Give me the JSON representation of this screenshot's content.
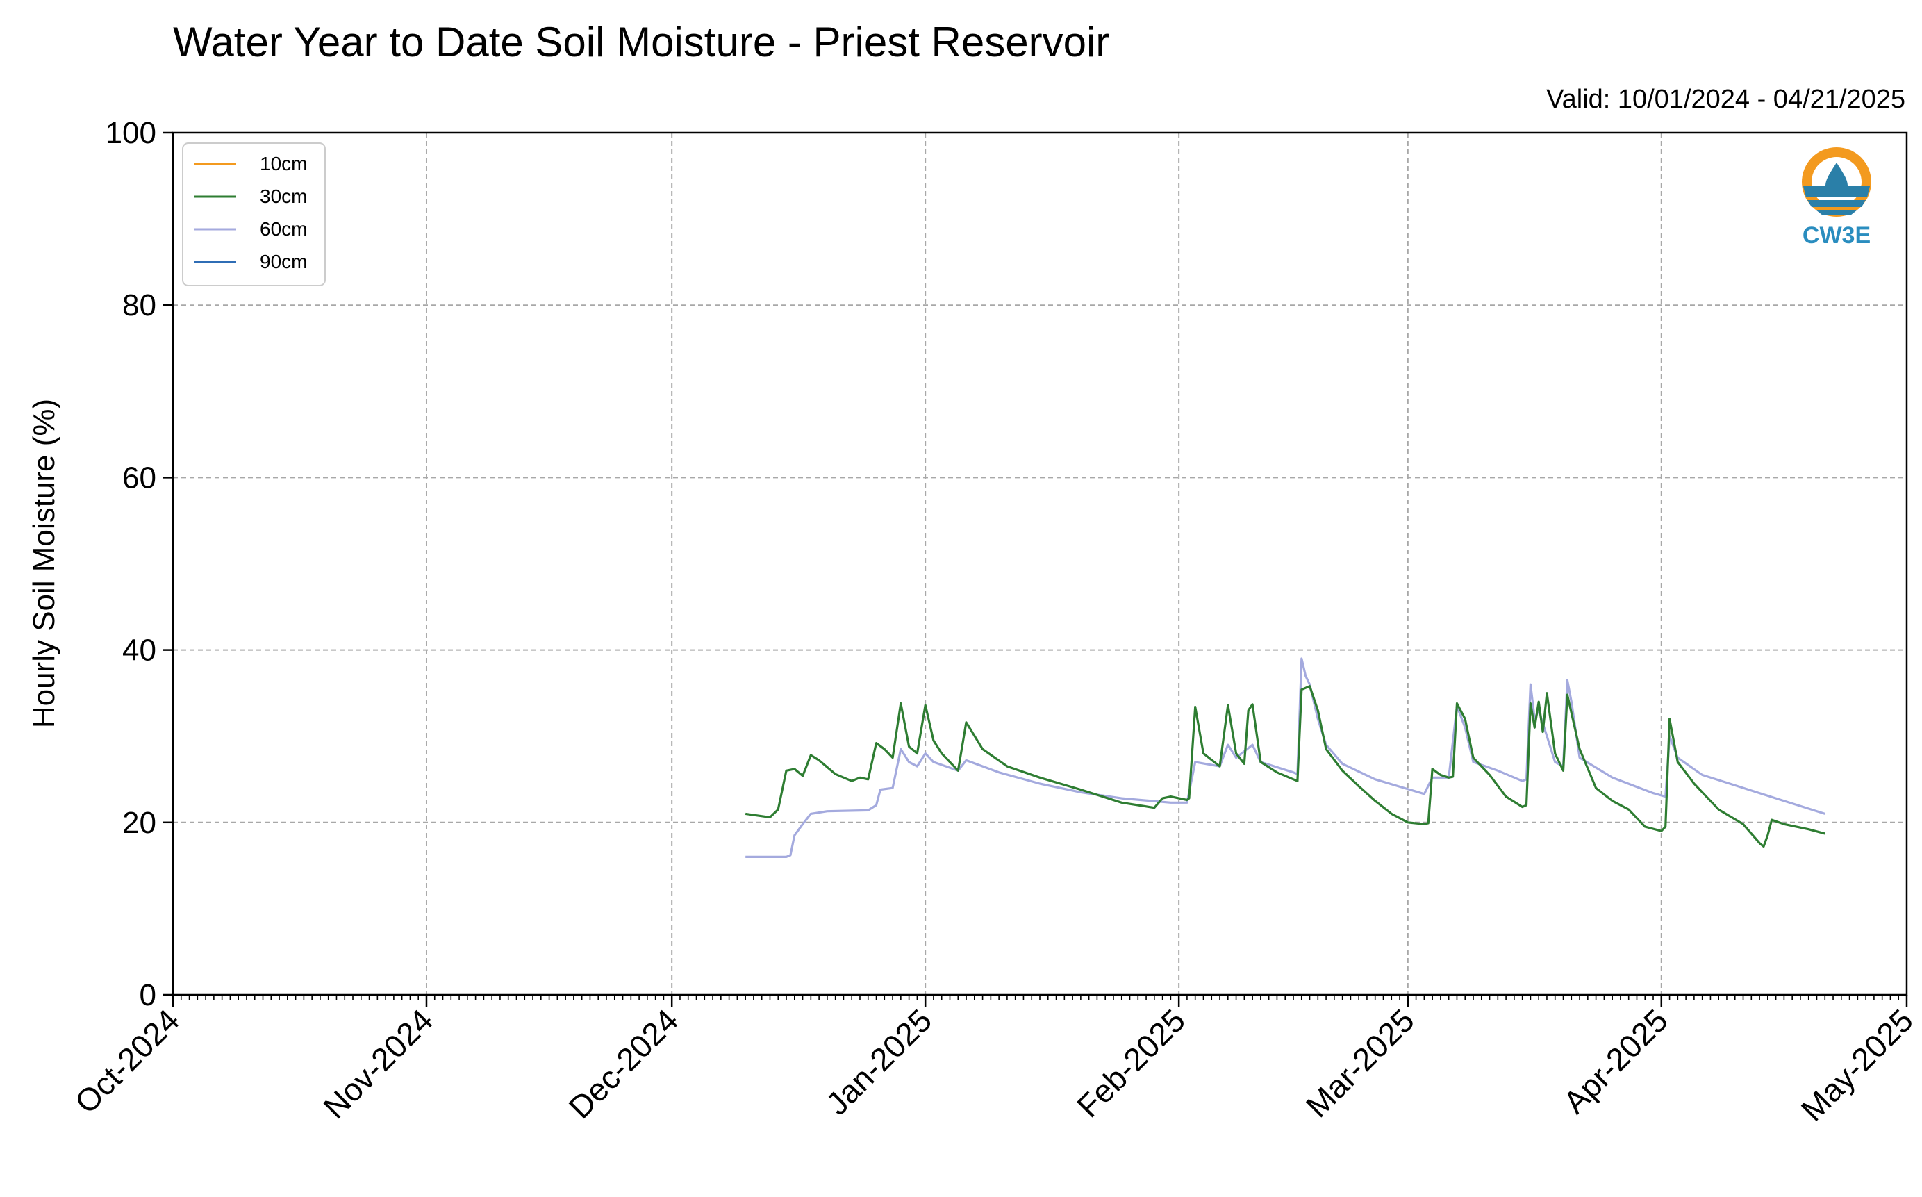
{
  "title": "Water Year to Date Soil Moisture - Priest Reservoir",
  "valid_text": "Valid: 10/01/2024 - 04/21/2025",
  "logo": {
    "text": "CW3E",
    "icon": "cw3e-logo-icon",
    "colors": {
      "ring": "#f39a1f",
      "waves": "#2a7fa8",
      "text": "#2a8dbf"
    }
  },
  "chart_data": {
    "type": "line",
    "title": "Water Year to Date Soil Moisture - Priest Reservoir",
    "xlabel": "",
    "ylabel": "Hourly Soil Moisture (%)",
    "ylim": [
      0,
      100
    ],
    "xlim": [
      "2024-10-01",
      "2025-05-01"
    ],
    "yticks": [
      0,
      20,
      40,
      60,
      80,
      100
    ],
    "xticks": [
      {
        "date": "2024-10-01",
        "label": "Oct-2024"
      },
      {
        "date": "2024-11-01",
        "label": "Nov-2024"
      },
      {
        "date": "2024-12-01",
        "label": "Dec-2024"
      },
      {
        "date": "2025-01-01",
        "label": "Jan-2025"
      },
      {
        "date": "2025-02-01",
        "label": "Feb-2025"
      },
      {
        "date": "2025-03-01",
        "label": "Mar-2025"
      },
      {
        "date": "2025-04-01",
        "label": "Apr-2025"
      },
      {
        "date": "2025-05-01",
        "label": "May-2025"
      }
    ],
    "grid": true,
    "legend_position": "top-left",
    "series": [
      {
        "name": "10cm",
        "color": "#f39a1f",
        "points": []
      },
      {
        "name": "30cm",
        "color": "#2e7d32",
        "points": [
          [
            "2024-12-10",
            21.0
          ],
          [
            "2024-12-13",
            20.6
          ],
          [
            "2024-12-14",
            21.5
          ],
          [
            "2024-12-15",
            26.0
          ],
          [
            "2024-12-16",
            26.2
          ],
          [
            "2024-12-17",
            25.4
          ],
          [
            "2024-12-18",
            27.8
          ],
          [
            "2024-12-19",
            27.2
          ],
          [
            "2024-12-21",
            25.6
          ],
          [
            "2024-12-23",
            24.8
          ],
          [
            "2024-12-24",
            25.2
          ],
          [
            "2024-12-25",
            25.0
          ],
          [
            "2024-12-26",
            29.2
          ],
          [
            "2024-12-27",
            28.5
          ],
          [
            "2024-12-28",
            27.5
          ],
          [
            "2024-12-29",
            33.8
          ],
          [
            "2024-12-30",
            28.8
          ],
          [
            "2024-12-31",
            28.0
          ],
          [
            "2025-01-01",
            33.6
          ],
          [
            "2025-01-02",
            29.5
          ],
          [
            "2025-01-03",
            28.0
          ],
          [
            "2025-01-05",
            26.0
          ],
          [
            "2025-01-06",
            31.6
          ],
          [
            "2025-01-08",
            28.5
          ],
          [
            "2025-01-11",
            26.5
          ],
          [
            "2025-01-15",
            25.2
          ],
          [
            "2025-01-20",
            23.8
          ],
          [
            "2025-01-25",
            22.3
          ],
          [
            "2025-01-29",
            21.7
          ],
          [
            "2025-01-30",
            22.8
          ],
          [
            "2025-01-31",
            23.0
          ],
          [
            "2025-02-02",
            22.6
          ],
          [
            "2025-02-02T06",
            22.8
          ],
          [
            "2025-02-03",
            33.4
          ],
          [
            "2025-02-04",
            28.0
          ],
          [
            "2025-02-06",
            26.5
          ],
          [
            "2025-02-07",
            33.6
          ],
          [
            "2025-02-08",
            28.0
          ],
          [
            "2025-02-09",
            26.8
          ],
          [
            "2025-02-09T12",
            33.0
          ],
          [
            "2025-02-10",
            33.7
          ],
          [
            "2025-02-11",
            27.0
          ],
          [
            "2025-02-13",
            25.8
          ],
          [
            "2025-02-15",
            25.0
          ],
          [
            "2025-02-15T12",
            24.8
          ],
          [
            "2025-02-16",
            35.4
          ],
          [
            "2025-02-17",
            35.8
          ],
          [
            "2025-02-18",
            33.0
          ],
          [
            "2025-02-19",
            28.5
          ],
          [
            "2025-02-21",
            26.0
          ],
          [
            "2025-02-23",
            24.2
          ],
          [
            "2025-02-25",
            22.5
          ],
          [
            "2025-02-27",
            21.0
          ],
          [
            "2025-03-01",
            20.0
          ],
          [
            "2025-03-03",
            19.8
          ],
          [
            "2025-03-03T12",
            19.9
          ],
          [
            "2025-03-04",
            26.2
          ],
          [
            "2025-03-05",
            25.5
          ],
          [
            "2025-03-06",
            25.2
          ],
          [
            "2025-03-06T12",
            25.3
          ],
          [
            "2025-03-07",
            33.8
          ],
          [
            "2025-03-08",
            32.0
          ],
          [
            "2025-03-09",
            27.5
          ],
          [
            "2025-03-11",
            25.5
          ],
          [
            "2025-03-13",
            23.0
          ],
          [
            "2025-03-15",
            21.8
          ],
          [
            "2025-03-15T12",
            22.0
          ],
          [
            "2025-03-16",
            33.8
          ],
          [
            "2025-03-16T12",
            31.0
          ],
          [
            "2025-03-17",
            34.0
          ],
          [
            "2025-03-17T12",
            30.5
          ],
          [
            "2025-03-18",
            35.0
          ],
          [
            "2025-03-19",
            28.0
          ],
          [
            "2025-03-19T12",
            27.0
          ],
          [
            "2025-03-20",
            26.0
          ],
          [
            "2025-03-20T12",
            34.8
          ],
          [
            "2025-03-22",
            28.5
          ],
          [
            "2025-03-24",
            24.0
          ],
          [
            "2025-03-26",
            22.5
          ],
          [
            "2025-03-28",
            21.5
          ],
          [
            "2025-03-30",
            19.5
          ],
          [
            "2025-04-01",
            19.0
          ],
          [
            "2025-04-01T12",
            19.5
          ],
          [
            "2025-04-02",
            32.0
          ],
          [
            "2025-04-03",
            27.0
          ],
          [
            "2025-04-05",
            24.5
          ],
          [
            "2025-04-08",
            21.5
          ],
          [
            "2025-04-11",
            19.8
          ],
          [
            "2025-04-13",
            17.6
          ],
          [
            "2025-04-13T12",
            17.2
          ],
          [
            "2025-04-14",
            18.5
          ],
          [
            "2025-04-14T12",
            20.3
          ],
          [
            "2025-04-16",
            19.8
          ],
          [
            "2025-04-19",
            19.2
          ],
          [
            "2025-04-21",
            18.7
          ]
        ]
      },
      {
        "name": "60cm",
        "color": "#a4aade",
        "points": [
          [
            "2024-12-10",
            16.0
          ],
          [
            "2024-12-15",
            16.0
          ],
          [
            "2024-12-15T12",
            16.2
          ],
          [
            "2024-12-16",
            18.5
          ],
          [
            "2024-12-17",
            19.8
          ],
          [
            "2024-12-18",
            21.0
          ],
          [
            "2024-12-20",
            21.3
          ],
          [
            "2024-12-25",
            21.4
          ],
          [
            "2024-12-26",
            22.0
          ],
          [
            "2024-12-26T12",
            23.8
          ],
          [
            "2024-12-28",
            24.0
          ],
          [
            "2024-12-29",
            28.5
          ],
          [
            "2024-12-30",
            27.0
          ],
          [
            "2024-12-31",
            26.5
          ],
          [
            "2025-01-01",
            28.0
          ],
          [
            "2025-01-02",
            27.0
          ],
          [
            "2025-01-05",
            26.0
          ],
          [
            "2025-01-06",
            27.2
          ],
          [
            "2025-01-10",
            25.8
          ],
          [
            "2025-01-15",
            24.5
          ],
          [
            "2025-01-20",
            23.5
          ],
          [
            "2025-01-25",
            22.8
          ],
          [
            "2025-01-31",
            22.3
          ],
          [
            "2025-02-02",
            22.3
          ],
          [
            "2025-02-03",
            27.0
          ],
          [
            "2025-02-06",
            26.5
          ],
          [
            "2025-02-07",
            29.0
          ],
          [
            "2025-02-08",
            27.5
          ],
          [
            "2025-02-10",
            29.0
          ],
          [
            "2025-02-11",
            27.0
          ],
          [
            "2025-02-15",
            25.8
          ],
          [
            "2025-02-15T12",
            25.6
          ],
          [
            "2025-02-16",
            39.0
          ],
          [
            "2025-02-16T12",
            37.0
          ],
          [
            "2025-02-17",
            36.0
          ],
          [
            "2025-02-18",
            32.0
          ],
          [
            "2025-02-19",
            29.0
          ],
          [
            "2025-02-21",
            26.8
          ],
          [
            "2025-02-25",
            25.0
          ],
          [
            "2025-03-03",
            23.3
          ],
          [
            "2025-03-04",
            25.2
          ],
          [
            "2025-03-06",
            25.2
          ],
          [
            "2025-03-07",
            33.5
          ],
          [
            "2025-03-08",
            31.0
          ],
          [
            "2025-03-09",
            27.0
          ],
          [
            "2025-03-12",
            26.0
          ],
          [
            "2025-03-15",
            24.8
          ],
          [
            "2025-03-15T12",
            25.0
          ],
          [
            "2025-03-16",
            36.0
          ],
          [
            "2025-03-16T12",
            32.0
          ],
          [
            "2025-03-17",
            33.0
          ],
          [
            "2025-03-18",
            30.0
          ],
          [
            "2025-03-19",
            27.0
          ],
          [
            "2025-03-20",
            26.5
          ],
          [
            "2025-03-20T12",
            36.5
          ],
          [
            "2025-03-21",
            34.0
          ],
          [
            "2025-03-22",
            27.5
          ],
          [
            "2025-03-26",
            25.2
          ],
          [
            "2025-03-31",
            23.4
          ],
          [
            "2025-04-01T12",
            23.0
          ],
          [
            "2025-04-02",
            30.0
          ],
          [
            "2025-04-03",
            27.5
          ],
          [
            "2025-04-06",
            25.5
          ],
          [
            "2025-04-10",
            24.3
          ],
          [
            "2025-04-15",
            22.8
          ],
          [
            "2025-04-21",
            21.0
          ]
        ]
      },
      {
        "name": "90cm",
        "color": "#2f6db5",
        "points": []
      }
    ]
  }
}
